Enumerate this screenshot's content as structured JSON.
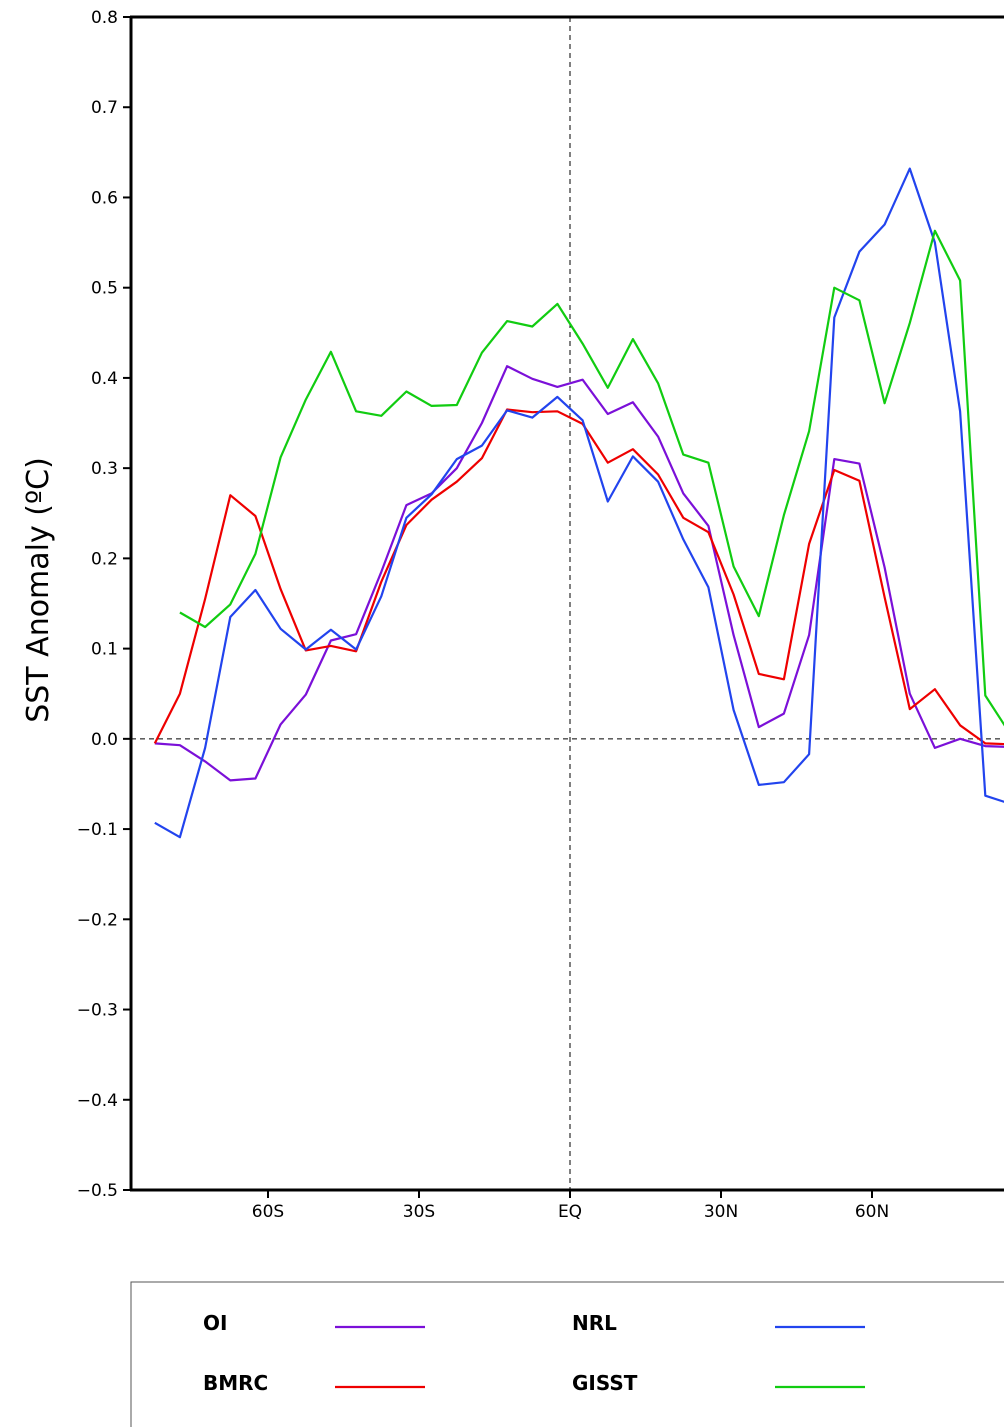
{
  "chart_data": {
    "type": "line",
    "title": "",
    "xlabel": "",
    "ylabel": "SST Anomaly (ºC)",
    "xlim": [
      -82.5,
      90
    ],
    "ylim": [
      -0.5,
      0.8
    ],
    "y_ticks": [
      0.8,
      0.7,
      0.6,
      0.5,
      0.4,
      0.3,
      0.2,
      0.1,
      0.0,
      -0.1,
      -0.2,
      -0.3,
      -0.4,
      -0.5
    ],
    "y_tick_labels": [
      "0.8",
      "0.7",
      "0.6",
      "0.5",
      "0.4",
      "0.3",
      "0.2",
      "0.1",
      "0.0",
      "−0.1",
      "−0.2",
      "−0.3",
      "−0.4",
      "−0.5"
    ],
    "x_ticks": [
      {
        "value": -60,
        "label": "60S"
      },
      {
        "value": -30,
        "label": "30S"
      },
      {
        "value": 0,
        "label": "EQ"
      },
      {
        "value": 30,
        "label": "30N"
      },
      {
        "value": 60,
        "label": "60N"
      }
    ],
    "reference_lines": {
      "x": 0,
      "y": 0
    },
    "grid": false,
    "legend_position": "bottom",
    "series": [
      {
        "name": "OI",
        "color": "#7b10d8",
        "x": [
          -82.5,
          -77.5,
          -72.5,
          -67.5,
          -62.5,
          -57.5,
          -52.5,
          -47.5,
          -42.5,
          -37.5,
          -32.5,
          -27.5,
          -22.5,
          -17.5,
          -12.5,
          -7.5,
          -2.5,
          2.5,
          7.5,
          12.5,
          17.5,
          22.5,
          27.5,
          32.5,
          37.5,
          42.5,
          47.5,
          52.5,
          57.5,
          62.5,
          67.5,
          72.5,
          77.5,
          82.5,
          87.5
        ],
        "values": [
          -0.005,
          -0.007,
          -0.025,
          -0.046,
          -0.044,
          0.016,
          0.049,
          0.109,
          0.116,
          0.185,
          0.259,
          0.272,
          0.3,
          0.35,
          0.413,
          0.399,
          0.39,
          0.398,
          0.36,
          0.373,
          0.335,
          0.272,
          0.236,
          0.115,
          0.013,
          0.028,
          0.115,
          0.31,
          0.305,
          0.19,
          0.05,
          -0.01,
          0.0,
          -0.008,
          -0.009
        ]
      },
      {
        "name": "BMRC",
        "color": "#ee0000",
        "x": [
          -82.5,
          -77.5,
          -72.5,
          -67.5,
          -62.5,
          -57.5,
          -52.5,
          -47.5,
          -42.5,
          -37.5,
          -32.5,
          -27.5,
          -22.5,
          -17.5,
          -12.5,
          -7.5,
          -2.5,
          2.5,
          7.5,
          12.5,
          17.5,
          22.5,
          27.5,
          32.5,
          37.5,
          42.5,
          47.5,
          52.5,
          57.5,
          62.5,
          67.5,
          72.5,
          77.5,
          82.5,
          87.5
        ],
        "values": [
          -0.005,
          0.05,
          0.155,
          0.27,
          0.247,
          0.166,
          0.098,
          0.103,
          0.097,
          0.174,
          0.237,
          0.265,
          0.285,
          0.311,
          0.365,
          0.362,
          0.363,
          0.349,
          0.306,
          0.321,
          0.293,
          0.245,
          0.229,
          0.16,
          0.072,
          0.066,
          0.216,
          0.298,
          0.286,
          0.157,
          0.033,
          0.055,
          0.015,
          -0.005,
          -0.006
        ]
      },
      {
        "name": "NRL",
        "color": "#2244ee",
        "x": [
          -82.5,
          -77.5,
          -72.5,
          -67.5,
          -62.5,
          -57.5,
          -52.5,
          -47.5,
          -42.5,
          -37.5,
          -32.5,
          -27.5,
          -22.5,
          -17.5,
          -12.5,
          -7.5,
          -2.5,
          2.5,
          7.5,
          12.5,
          17.5,
          22.5,
          27.5,
          32.5,
          37.5,
          42.5,
          47.5,
          52.5,
          57.5,
          62.5,
          67.5,
          72.5,
          77.5,
          82.5,
          87.5
        ],
        "values": [
          -0.093,
          -0.109,
          -0.01,
          0.135,
          0.165,
          0.122,
          0.099,
          0.121,
          0.099,
          0.158,
          0.245,
          0.271,
          0.31,
          0.325,
          0.364,
          0.356,
          0.379,
          0.353,
          0.263,
          0.313,
          0.285,
          0.221,
          0.168,
          0.032,
          -0.051,
          -0.048,
          -0.017,
          0.467,
          0.54,
          0.57,
          0.632,
          0.55,
          0.363,
          -0.063,
          -0.072
        ]
      },
      {
        "name": "GISST",
        "color": "#11cc11",
        "x": [
          -77.5,
          -72.5,
          -67.5,
          -62.5,
          -57.5,
          -52.5,
          -47.5,
          -42.5,
          -37.5,
          -32.5,
          -27.5,
          -22.5,
          -17.5,
          -12.5,
          -7.5,
          -2.5,
          2.5,
          7.5,
          12.5,
          17.5,
          22.5,
          27.5,
          32.5,
          37.5,
          42.5,
          47.5,
          52.5,
          57.5,
          62.5,
          67.5,
          72.5,
          77.5,
          82.5,
          87.5
        ],
        "values": [
          0.14,
          0.124,
          0.149,
          0.205,
          0.312,
          0.376,
          0.429,
          0.363,
          0.358,
          0.385,
          0.369,
          0.37,
          0.428,
          0.463,
          0.457,
          0.482,
          0.438,
          0.389,
          0.443,
          0.394,
          0.315,
          0.306,
          0.191,
          0.136,
          0.248,
          0.341,
          0.5,
          0.486,
          0.372,
          0.461,
          0.563,
          0.508,
          0.048,
          0.005
        ]
      }
    ]
  },
  "legend": {
    "items": [
      {
        "label": "OI",
        "color": "#7b10d8"
      },
      {
        "label": "NRL",
        "color": "#2244ee"
      },
      {
        "label": "BMRC",
        "color": "#ee0000"
      },
      {
        "label": "GISST",
        "color": "#11cc11"
      }
    ]
  }
}
